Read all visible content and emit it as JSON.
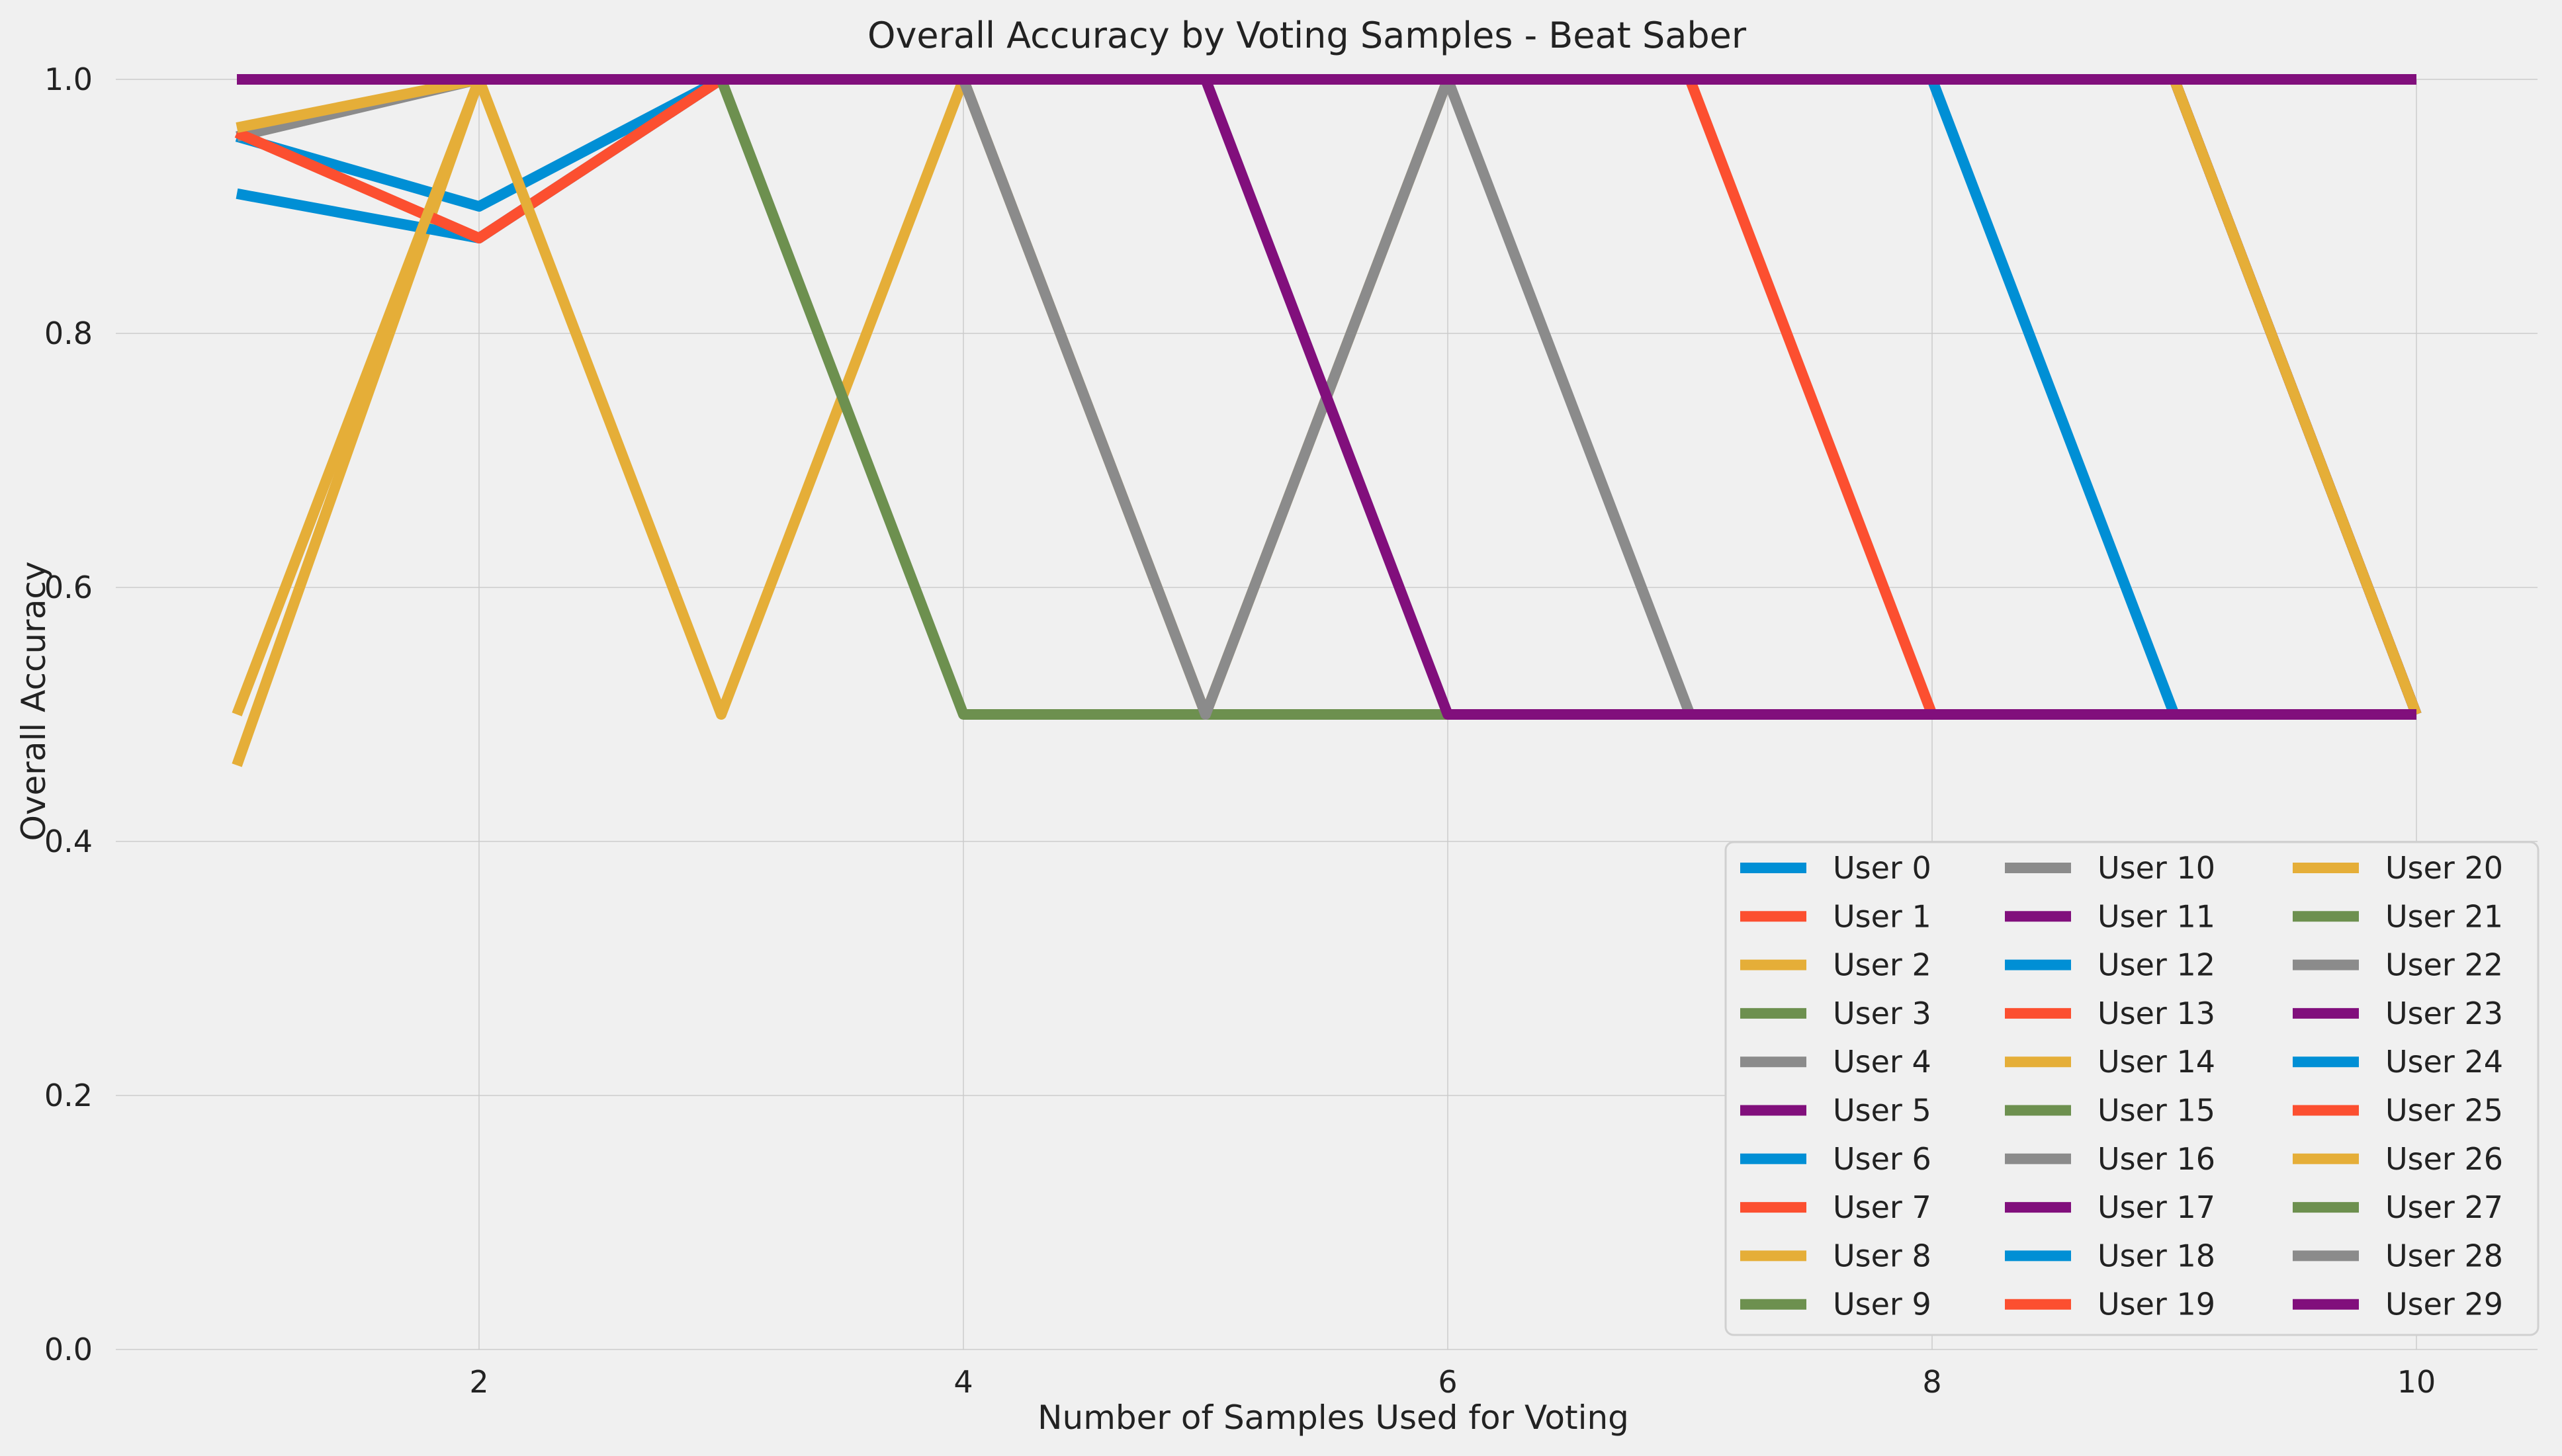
{
  "chart_data": {
    "type": "line",
    "title": "Overall Accuracy by Voting Samples - Beat Saber",
    "xlabel": "Number of Samples Used for Voting",
    "ylabel": "Overall Accuracy",
    "xlim": [
      0.5,
      10.5
    ],
    "ylim": [
      0,
      1.0
    ],
    "xticks": [
      2,
      4,
      6,
      8,
      10
    ],
    "yticks": [
      0.0,
      0.2,
      0.4,
      0.6,
      0.8,
      1.0
    ],
    "ytick_labels": [
      "0.0",
      "0.2",
      "0.4",
      "0.6",
      "0.8",
      "1.0"
    ],
    "grid": true,
    "legend_position": "lower-right",
    "legend_columns": 3,
    "palette": [
      "#008fd5",
      "#fc4f30",
      "#e5ae38",
      "#6d904f",
      "#8b8b8b",
      "#810f7c"
    ],
    "x": [
      1,
      2,
      3,
      4,
      5,
      6,
      7,
      8,
      9,
      10
    ],
    "series": [
      {
        "name": "User 0",
        "values": [
          0.955,
          0.9,
          1,
          1,
          1,
          1,
          1,
          1,
          1,
          1
        ]
      },
      {
        "name": "User 1",
        "values": [
          0.958,
          0.875,
          1,
          1,
          1,
          1,
          1,
          1,
          1,
          1
        ]
      },
      {
        "name": "User 2",
        "values": [
          0.46,
          1,
          1,
          1,
          1,
          1,
          1,
          1,
          1,
          1
        ]
      },
      {
        "name": "User 3",
        "values": [
          1,
          1,
          1,
          1,
          1,
          1,
          1,
          1,
          1,
          1
        ]
      },
      {
        "name": "User 4",
        "values": [
          0.955,
          1,
          1,
          1,
          1,
          1,
          1,
          1,
          1,
          1
        ]
      },
      {
        "name": "User 5",
        "values": [
          1,
          1,
          1,
          1,
          1,
          1,
          1,
          1,
          1,
          1
        ]
      },
      {
        "name": "User 6",
        "values": [
          0.91,
          0.875,
          1,
          1,
          1,
          1,
          1,
          1,
          1,
          1
        ]
      },
      {
        "name": "User 7",
        "values": [
          0.958,
          0.875,
          1,
          1,
          1,
          1,
          1,
          1,
          1,
          1
        ]
      },
      {
        "name": "User 8",
        "values": [
          0.962,
          1,
          1,
          1,
          1,
          1,
          1,
          1,
          1,
          1
        ]
      },
      {
        "name": "User 9",
        "values": [
          1,
          1,
          1,
          1,
          1,
          1,
          1,
          1,
          1,
          1
        ]
      },
      {
        "name": "User 10",
        "values": [
          1,
          1,
          1,
          1,
          1,
          1,
          1,
          1,
          1,
          1
        ]
      },
      {
        "name": "User 11",
        "values": [
          1,
          1,
          1,
          1,
          1,
          1,
          1,
          1,
          1,
          1
        ]
      },
      {
        "name": "User 12",
        "values": [
          1,
          1,
          1,
          1,
          1,
          1,
          1,
          1,
          1,
          0.5
        ]
      },
      {
        "name": "User 13",
        "values": [
          1,
          1,
          1,
          1,
          1,
          1,
          1,
          1,
          1,
          0.5
        ]
      },
      {
        "name": "User 14",
        "values": [
          0.5,
          1,
          0.5,
          1,
          1,
          1,
          1,
          1,
          1,
          0.5
        ]
      },
      {
        "name": "User 15",
        "values": [
          1,
          1,
          1,
          1,
          1,
          1,
          1,
          1,
          1,
          0.5
        ]
      },
      {
        "name": "User 16",
        "values": [
          1,
          1,
          1,
          1,
          1,
          1,
          1,
          1,
          1,
          0.5
        ]
      },
      {
        "name": "User 17",
        "values": [
          1,
          1,
          1,
          1,
          1,
          1,
          1,
          1,
          1,
          0.5
        ]
      },
      {
        "name": "User 18",
        "values": [
          1,
          1,
          1,
          1,
          1,
          1,
          1,
          1,
          0.5,
          0.5
        ]
      },
      {
        "name": "User 19",
        "values": [
          1,
          1,
          1,
          1,
          1,
          1,
          1,
          0.5,
          0.5,
          0.5
        ]
      },
      {
        "name": "User 20",
        "values": [
          1,
          1,
          1,
          1,
          0.5,
          1,
          1,
          1,
          1,
          0.5
        ]
      },
      {
        "name": "User 21",
        "values": [
          1,
          1,
          1,
          0.5,
          0.5,
          0.5,
          0.5,
          0.5,
          0.5,
          0.5
        ]
      },
      {
        "name": "User 22",
        "values": [
          1,
          1,
          1,
          1,
          0.5,
          1,
          0.5,
          0.5,
          0.5,
          0.5
        ]
      },
      {
        "name": "User 23",
        "values": [
          1,
          1,
          1,
          1,
          1,
          0.5,
          0.5,
          0.5,
          0.5,
          0.5
        ]
      },
      {
        "name": "User 24",
        "values": [
          1,
          1,
          1,
          1,
          1,
          1,
          1,
          1,
          1,
          1
        ]
      },
      {
        "name": "User 25",
        "values": [
          1,
          1,
          1,
          1,
          1,
          1,
          1,
          1,
          1,
          1
        ]
      },
      {
        "name": "User 26",
        "values": [
          1,
          1,
          1,
          1,
          1,
          1,
          1,
          1,
          1,
          1
        ]
      },
      {
        "name": "User 27",
        "values": [
          1,
          1,
          1,
          1,
          1,
          1,
          1,
          1,
          1,
          1
        ]
      },
      {
        "name": "User 28",
        "values": [
          1,
          1,
          1,
          1,
          1,
          1,
          1,
          1,
          1,
          1
        ]
      },
      {
        "name": "User 29",
        "values": [
          1,
          1,
          1,
          1,
          1,
          1,
          1,
          1,
          1,
          1
        ]
      }
    ]
  }
}
